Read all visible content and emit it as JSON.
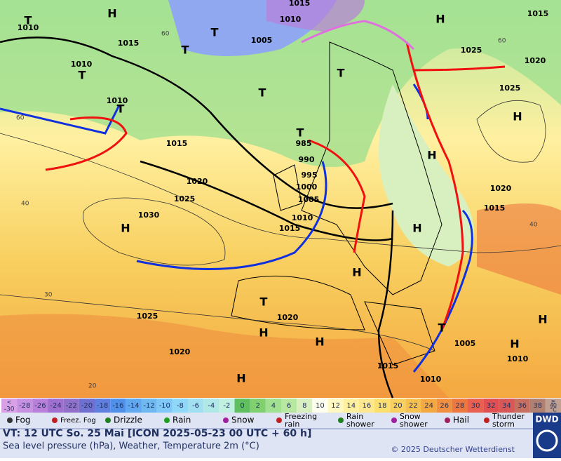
{
  "map": {
    "pressure_labels": [
      "1015",
      "1015",
      "1010",
      "1015",
      "1010",
      "1005",
      "1025",
      "1020",
      "1010",
      "1025",
      "1010",
      "1015",
      "985",
      "990",
      "995",
      "1000",
      "1020",
      "1025",
      "1030",
      "1005",
      "1010",
      "1015",
      "1020",
      "1015",
      "1025",
      "1020",
      "1020",
      "1015",
      "1010",
      "1005",
      "1010"
    ],
    "highs": [
      "H",
      "H",
      "H",
      "H",
      "H",
      "H",
      "H",
      "H",
      "H",
      "H",
      "H",
      "H"
    ],
    "lows": [
      "T",
      "T",
      "T",
      "T",
      "T",
      "T",
      "T",
      "T",
      "T",
      "T"
    ],
    "latitudes": [
      "60",
      "40",
      "30",
      "20",
      "60",
      "40",
      "60"
    ]
  },
  "scale": {
    "prefix": "<",
    "unit": "°C",
    "top_prefix": "≥",
    "labels": [
      "-30",
      "-28",
      "-26",
      "-24",
      "-22",
      "-20",
      "-18",
      "-16",
      "-14",
      "-12",
      "-10",
      "-8",
      "-6",
      "-4",
      "-2",
      "0",
      "2",
      "4",
      "6",
      "8",
      "10",
      "12",
      "14",
      "16",
      "18",
      "20",
      "22",
      "24",
      "26",
      "28",
      "30",
      "32",
      "34",
      "36",
      "38",
      "40"
    ],
    "colors": [
      "#d9a0e6",
      "#c890e0",
      "#b880d8",
      "#a070d0",
      "#9070c8",
      "#7070d0",
      "#6080e0",
      "#5090e8",
      "#60a8f0",
      "#70b8f0",
      "#80c8f8",
      "#90d8f8",
      "#a0e0f0",
      "#b0e8e8",
      "#c0f0e0",
      "#60c060",
      "#80d070",
      "#a0e090",
      "#b8e8a0",
      "#d8f0c0",
      "#fffff0",
      "#fff8c0",
      "#fff0a0",
      "#fde890",
      "#fbe070",
      "#f8d060",
      "#f6c050",
      "#f4a840",
      "#f09040",
      "#ec7840",
      "#e86050",
      "#e05050",
      "#d85858",
      "#c87060",
      "#b08070",
      "#c0a090"
    ]
  },
  "legend": [
    "Fog",
    "Freez. Fog",
    "Drizzle",
    "Rain",
    "Snow",
    "Freezing rain",
    "Rain shower",
    "Snow shower",
    "Hail",
    "Thunder storm"
  ],
  "footer": {
    "valid": "VT: 12 UTC So.  25 Mai [ICON 2025-05-23  00 UTC + 60 h]",
    "subtitle": "Sea level pressure (hPa), Weather, Temperature 2m (°C)",
    "copyright": "© 2025 Deutscher Wetterdienst",
    "logo": "DWD"
  }
}
